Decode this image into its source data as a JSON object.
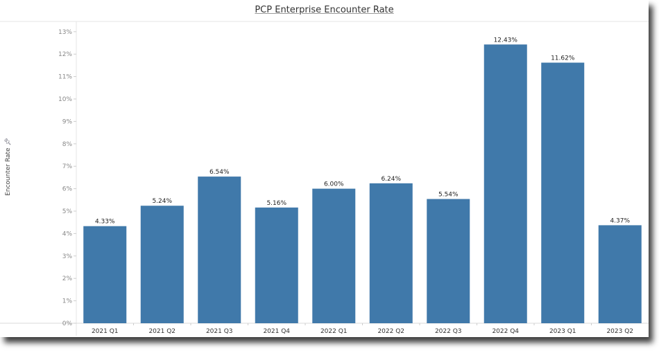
{
  "chart_data": {
    "type": "bar",
    "title": "PCP Enterprise Encounter Rate",
    "xlabel": "",
    "ylabel": "Encounter Rate",
    "ylabel_icon": "pin-icon",
    "categories": [
      "2021 Q1",
      "2021 Q2",
      "2021 Q3",
      "2021 Q4",
      "2022 Q1",
      "2022 Q2",
      "2022 Q3",
      "2022 Q4",
      "2023 Q1",
      "2023 Q2"
    ],
    "values": [
      4.33,
      5.24,
      6.54,
      5.16,
      6.0,
      6.24,
      5.54,
      12.43,
      11.62,
      4.37
    ],
    "data_labels": [
      "4.33%",
      "5.24%",
      "6.54%",
      "5.16%",
      "6.00%",
      "6.24%",
      "5.54%",
      "12.43%",
      "11.62%",
      "4.37%"
    ],
    "yticks": [
      "0%",
      "1%",
      "2%",
      "3%",
      "4%",
      "5%",
      "6%",
      "7%",
      "8%",
      "9%",
      "10%",
      "11%",
      "12%",
      "13%"
    ],
    "ylim": [
      0,
      13
    ],
    "grid": false,
    "bar_color": "#4079aa"
  }
}
